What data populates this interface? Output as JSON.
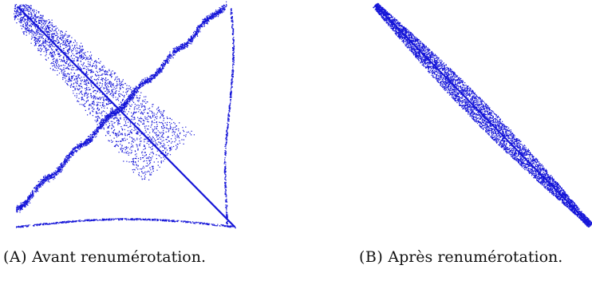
{
  "colors": {
    "points": "#1515d8",
    "background": "#ffffff"
  },
  "panels": [
    {
      "label": "(A)",
      "caption": "Avant renumérotation."
    },
    {
      "label": "(B)",
      "caption": "Après renumérotation."
    }
  ]
}
